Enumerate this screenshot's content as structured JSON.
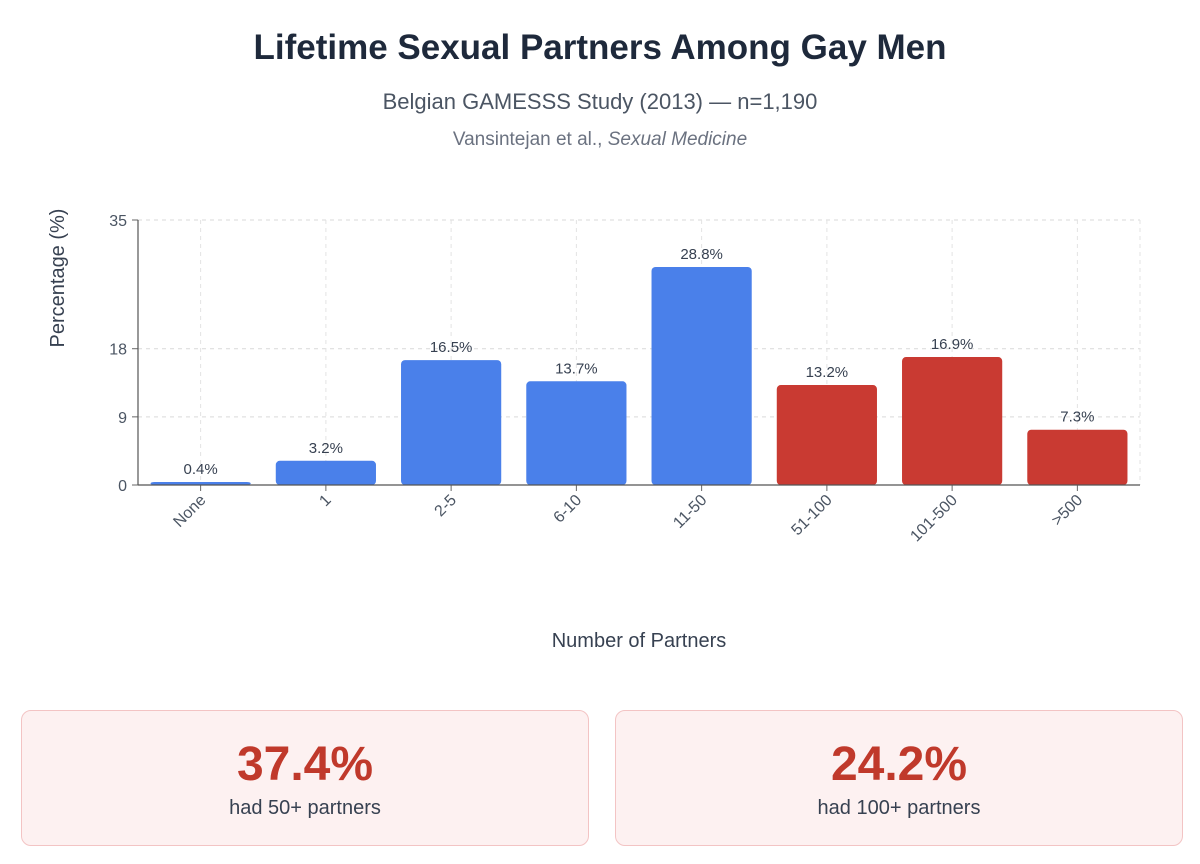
{
  "header": {
    "title": "Lifetime Sexual Partners Among Gay Men",
    "subtitle": "Belgian GAMESSS Study (2013) — n=1,190",
    "citation_authors": "Vansintejan et al.,",
    "citation_journal": "Sexual Medicine"
  },
  "chart_data": {
    "type": "bar",
    "title": "Lifetime Sexual Partners Among Gay Men",
    "xlabel": "Number of Partners",
    "ylabel": "Percentage (%)",
    "ylim": [
      0,
      35
    ],
    "yticks": [
      0,
      9,
      18,
      35
    ],
    "grid": true,
    "categories": [
      "None",
      "1",
      "2-5",
      "6-10",
      "11-50",
      "51-100",
      "101-500",
      ">500"
    ],
    "values": [
      0.4,
      3.2,
      16.5,
      13.7,
      28.8,
      13.2,
      16.9,
      7.3
    ],
    "value_labels": [
      "0.4%",
      "3.2%",
      "16.5%",
      "13.7%",
      "28.8%",
      "13.2%",
      "16.9%",
      "7.3%"
    ],
    "bar_colors": [
      "#4a80ea",
      "#4a80ea",
      "#4a80ea",
      "#4a80ea",
      "#4a80ea",
      "#c93a32",
      "#c93a32",
      "#c93a32"
    ]
  },
  "stats": [
    {
      "value": "37.4%",
      "label": "had 50+ partners"
    },
    {
      "value": "24.2%",
      "label": "had 100+ partners"
    }
  ],
  "colors": {
    "low_group": "#4a80ea",
    "high_group": "#c93a32",
    "stat_accent": "#c0392b"
  }
}
